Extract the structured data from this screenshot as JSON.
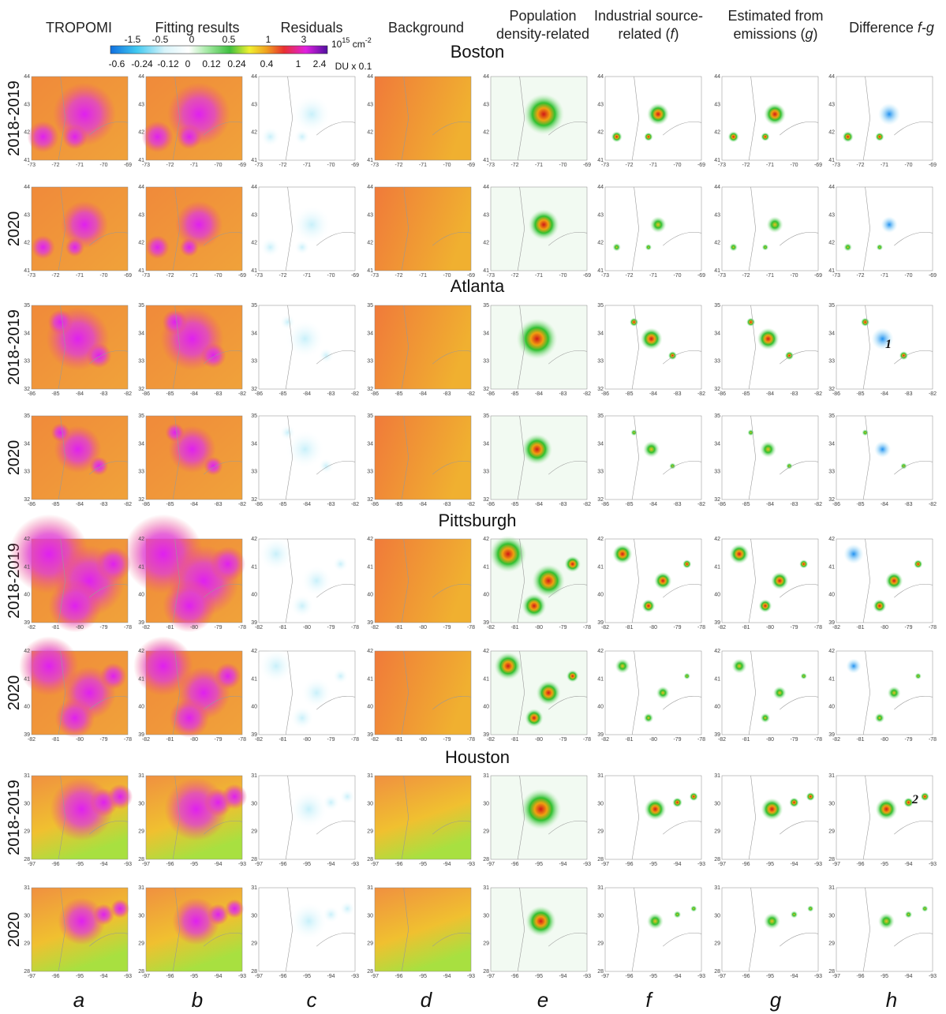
{
  "headers": [
    {
      "lines": [
        "TROPOMI"
      ]
    },
    {
      "lines": [
        "Fitting results"
      ]
    },
    {
      "lines": [
        "Residuals"
      ]
    },
    {
      "lines": [
        "Background"
      ]
    },
    {
      "lines": [
        "Population",
        "density-related"
      ]
    },
    {
      "lines": [
        "Industrial source-",
        "related ("
      ],
      "var": "f",
      "post": ")"
    },
    {
      "lines": [
        "Estimated from",
        "emissions ("
      ],
      "var": "g",
      "post": ")"
    },
    {
      "lines": [
        "Difference "
      ],
      "var": "f-g",
      "post": ""
    }
  ],
  "colorbar": {
    "top_ticks": [
      "-1.5",
      "-0.5",
      "0",
      "0.5",
      "1",
      "3"
    ],
    "top_unit": {
      "base": "10",
      "exp": "15",
      "unit": " cm",
      "unit_exp": "-2"
    },
    "bottom_ticks": [
      "-0.6",
      "-0.24",
      "-0.12",
      "0",
      "0.12",
      "0.24",
      "0.4",
      "1",
      "2.4"
    ],
    "bottom_unit": "DU x 0.1"
  },
  "cities": [
    {
      "name": "Boston",
      "periods": [
        "2018-2019",
        "2020"
      ],
      "xticks": [
        "-73",
        "-72",
        "-71",
        "-70",
        "-69"
      ],
      "yticks": [
        "41",
        "42",
        "43",
        "44"
      ]
    },
    {
      "name": "Atlanta",
      "periods": [
        "2018-2019",
        "2020"
      ],
      "xticks": [
        "-86",
        "-85",
        "-84",
        "-83",
        "-82"
      ],
      "yticks": [
        "32",
        "33",
        "34",
        "35"
      ]
    },
    {
      "name": "Pittsburgh",
      "periods": [
        "2018-2019",
        "2020"
      ],
      "xticks": [
        "-82",
        "-81",
        "-80",
        "-79",
        "-78"
      ],
      "yticks": [
        "39",
        "40",
        "41",
        "42"
      ]
    },
    {
      "name": "Houston",
      "periods": [
        "2018-2019",
        "2020"
      ],
      "xticks": [
        "-97",
        "-96",
        "-95",
        "-94",
        "-93"
      ],
      "yticks": [
        "28",
        "29",
        "30",
        "31"
      ]
    }
  ],
  "column_letters": [
    "a",
    "b",
    "c",
    "d",
    "e",
    "f",
    "g",
    "h"
  ],
  "annotations": [
    "1",
    "2"
  ]
}
